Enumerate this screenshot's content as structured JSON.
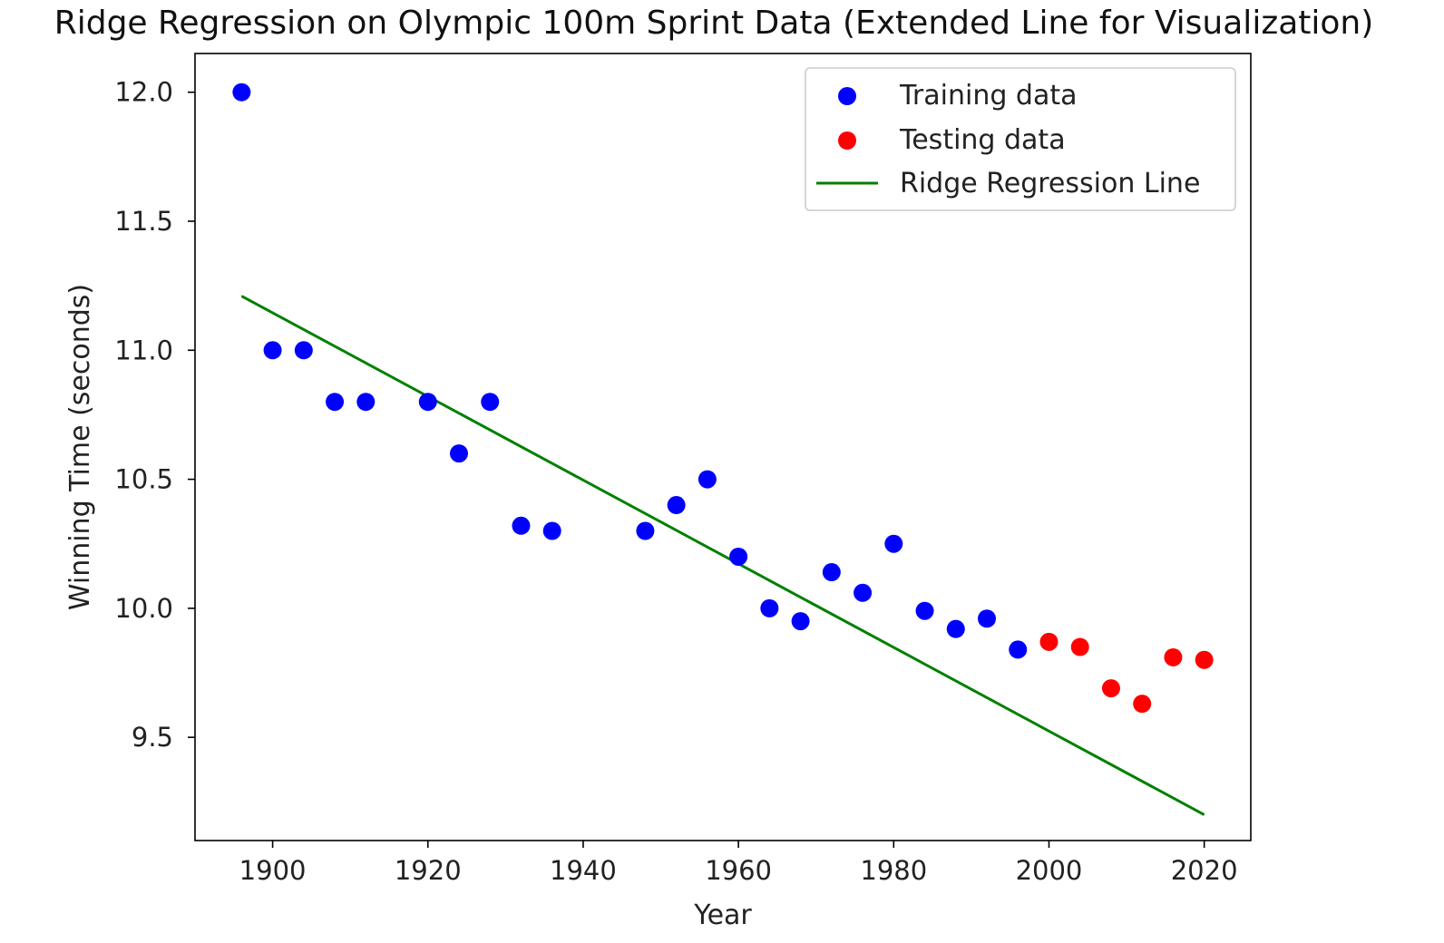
{
  "chart_data": {
    "type": "scatter",
    "title": "Ridge Regression on Olympic 100m Sprint Data (Extended Line for Visualization)",
    "xlabel": "Year",
    "ylabel": "Winning Time (seconds)",
    "xlim": [
      1890,
      2026
    ],
    "ylim": [
      9.1,
      12.15
    ],
    "xticks": [
      1900,
      1920,
      1940,
      1960,
      1980,
      2000,
      2020
    ],
    "yticks": [
      9.5,
      10.0,
      10.5,
      11.0,
      11.5,
      12.0
    ],
    "ytick_labels": [
      "9.5",
      "10.0",
      "10.5",
      "11.0",
      "11.5",
      "12.0"
    ],
    "legend_position": "top-right",
    "grid": false,
    "series": [
      {
        "name": "Training data",
        "kind": "scatter",
        "color": "#0000ff",
        "points": [
          [
            1896,
            12.0
          ],
          [
            1900,
            11.0
          ],
          [
            1904,
            11.0
          ],
          [
            1908,
            10.8
          ],
          [
            1912,
            10.8
          ],
          [
            1920,
            10.8
          ],
          [
            1924,
            10.6
          ],
          [
            1928,
            10.8
          ],
          [
            1932,
            10.32
          ],
          [
            1936,
            10.3
          ],
          [
            1948,
            10.3
          ],
          [
            1952,
            10.4
          ],
          [
            1956,
            10.5
          ],
          [
            1960,
            10.2
          ],
          [
            1964,
            10.0
          ],
          [
            1968,
            9.95
          ],
          [
            1972,
            10.14
          ],
          [
            1976,
            10.06
          ],
          [
            1980,
            10.25
          ],
          [
            1984,
            9.99
          ],
          [
            1988,
            9.92
          ],
          [
            1992,
            9.96
          ],
          [
            1996,
            9.84
          ]
        ]
      },
      {
        "name": "Testing data",
        "kind": "scatter",
        "color": "#ff0000",
        "points": [
          [
            2000,
            9.87
          ],
          [
            2004,
            9.85
          ],
          [
            2008,
            9.69
          ],
          [
            2012,
            9.63
          ],
          [
            2016,
            9.81
          ],
          [
            2020,
            9.8
          ]
        ]
      },
      {
        "name": "Ridge Regression Line",
        "kind": "line",
        "color": "#008000",
        "points": [
          [
            1896,
            11.21
          ],
          [
            2020,
            9.2
          ]
        ]
      }
    ]
  }
}
